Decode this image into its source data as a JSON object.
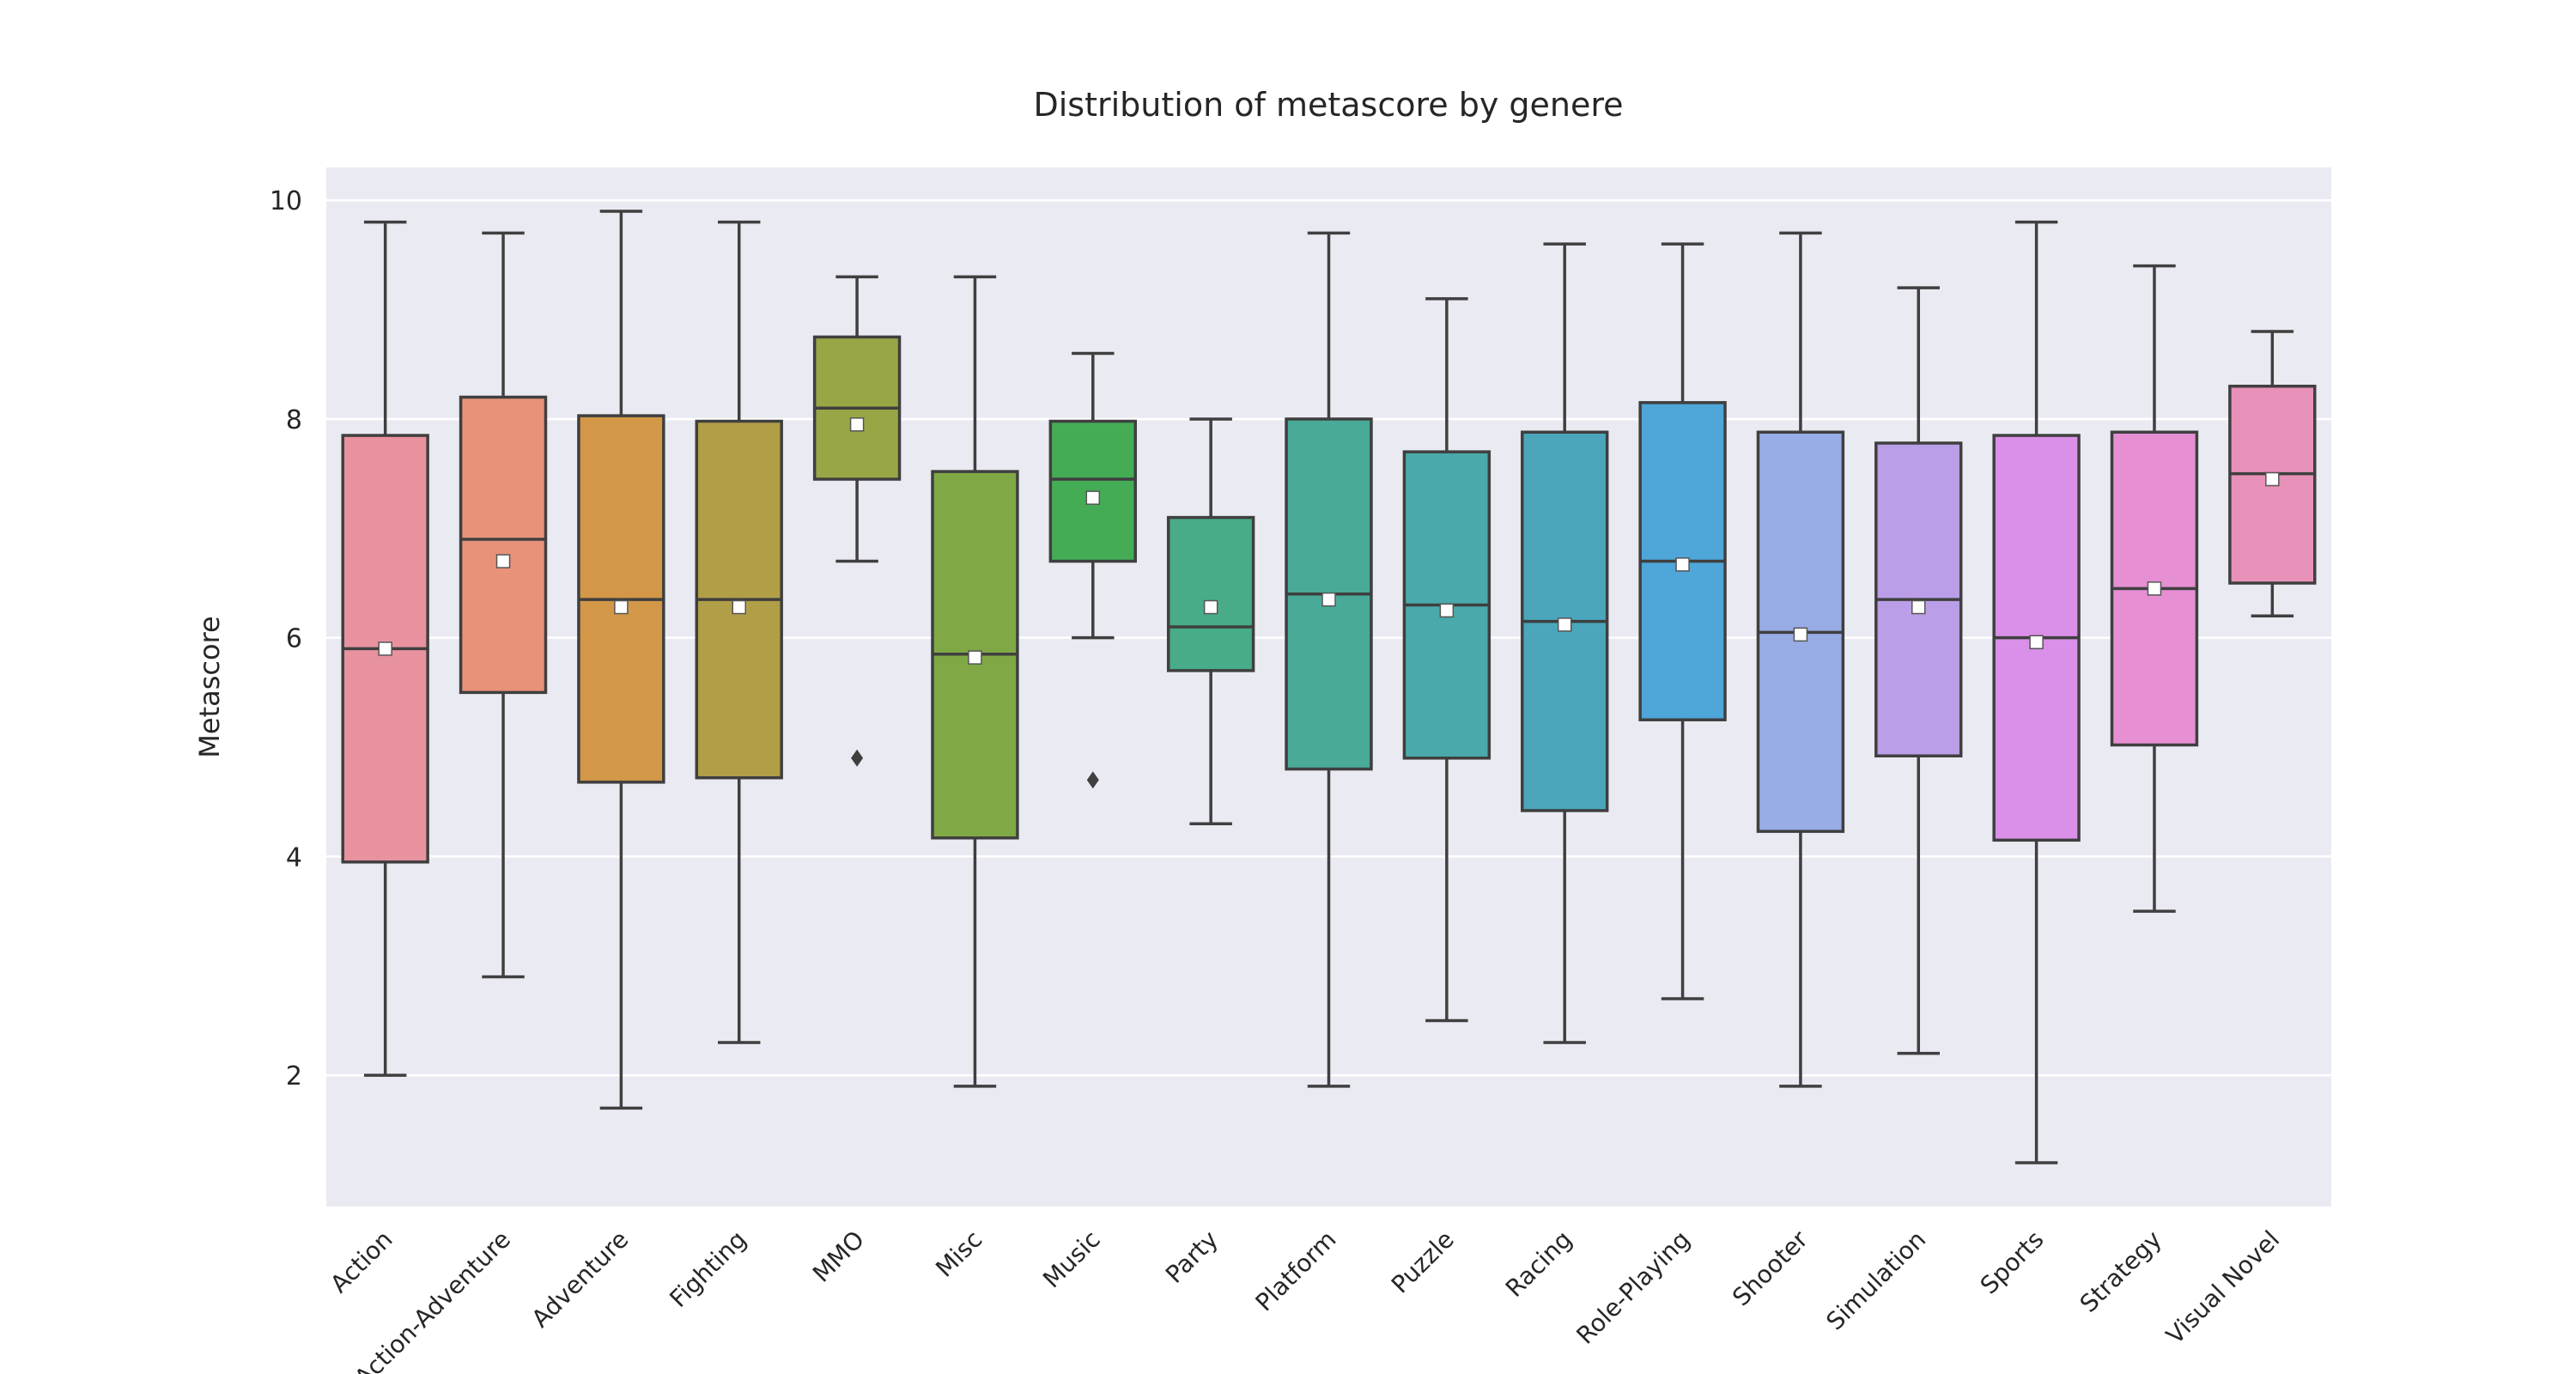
{
  "chart_data": {
    "type": "box",
    "title": "Distribution of metascore by genere",
    "xlabel": "",
    "ylabel": "Metascore",
    "ylim": [
      0.8,
      10.3
    ],
    "yticks": [
      2,
      4,
      6,
      8,
      10
    ],
    "grid": true,
    "legend": "none",
    "categories": [
      "Action",
      "Action-Adventure",
      "Adventure",
      "Fighting",
      "MMO",
      "Misc",
      "Music",
      "Party",
      "Platform",
      "Puzzle",
      "Racing",
      "Role-Playing",
      "Shooter",
      "Simulation",
      "Sports",
      "Strategy",
      "Visual Novel"
    ],
    "boxes": [
      {
        "category": "Action",
        "whislo": 2.0,
        "q1": 3.95,
        "med": 5.9,
        "q3": 7.85,
        "whishi": 9.8,
        "mean": 5.9,
        "fliers": [],
        "color": "#e8929f"
      },
      {
        "category": "Action-Adventure",
        "whislo": 2.9,
        "q1": 5.5,
        "med": 6.9,
        "q3": 8.2,
        "whishi": 9.7,
        "mean": 6.7,
        "fliers": [],
        "color": "#e8927a"
      },
      {
        "category": "Adventure",
        "whislo": 1.7,
        "q1": 4.68,
        "med": 6.35,
        "q3": 8.03,
        "whishi": 9.9,
        "mean": 6.28,
        "fliers": [],
        "color": "#d39748"
      },
      {
        "category": "Fighting",
        "whislo": 2.3,
        "q1": 4.72,
        "med": 6.35,
        "q3": 7.98,
        "whishi": 9.8,
        "mean": 6.28,
        "fliers": [],
        "color": "#b19f47"
      },
      {
        "category": "MMO",
        "whislo": 6.7,
        "q1": 7.45,
        "med": 8.1,
        "q3": 8.75,
        "whishi": 9.3,
        "mean": 7.95,
        "fliers": [
          4.9
        ],
        "color": "#9aa645"
      },
      {
        "category": "Misc",
        "whislo": 1.9,
        "q1": 4.17,
        "med": 5.85,
        "q3": 7.52,
        "whishi": 9.3,
        "mean": 5.82,
        "fliers": [],
        "color": "#80a945"
      },
      {
        "category": "Music",
        "whislo": 6.0,
        "q1": 6.7,
        "med": 7.45,
        "q3": 7.98,
        "whishi": 8.6,
        "mean": 7.28,
        "fliers": [
          4.7
        ],
        "color": "#44ac55"
      },
      {
        "category": "Party",
        "whislo": 4.3,
        "q1": 5.7,
        "med": 6.1,
        "q3": 7.1,
        "whishi": 8.0,
        "mean": 6.28,
        "fliers": [],
        "color": "#47ac87"
      },
      {
        "category": "Platform",
        "whislo": 1.9,
        "q1": 4.8,
        "med": 6.4,
        "q3": 8.0,
        "whishi": 9.7,
        "mean": 6.35,
        "fliers": [],
        "color": "#49aa98"
      },
      {
        "category": "Puzzle",
        "whislo": 2.5,
        "q1": 4.9,
        "med": 6.3,
        "q3": 7.7,
        "whishi": 9.1,
        "mean": 6.25,
        "fliers": [],
        "color": "#4aa9aa"
      },
      {
        "category": "Racing",
        "whislo": 2.3,
        "q1": 4.42,
        "med": 6.15,
        "q3": 7.88,
        "whishi": 9.6,
        "mean": 6.12,
        "fliers": [],
        "color": "#4ba6bc"
      },
      {
        "category": "Role-Playing",
        "whislo": 2.7,
        "q1": 5.25,
        "med": 6.7,
        "q3": 8.15,
        "whishi": 9.6,
        "mean": 6.67,
        "fliers": [],
        "color": "#4fa6d9"
      },
      {
        "category": "Shooter",
        "whislo": 1.9,
        "q1": 4.23,
        "med": 6.05,
        "q3": 7.88,
        "whishi": 9.7,
        "mean": 6.03,
        "fliers": [],
        "color": "#98ace6"
      },
      {
        "category": "Simulation",
        "whislo": 2.2,
        "q1": 4.92,
        "med": 6.35,
        "q3": 7.78,
        "whishi": 9.2,
        "mean": 6.28,
        "fliers": [],
        "color": "#bb9ee8"
      },
      {
        "category": "Sports",
        "whislo": 1.2,
        "q1": 4.15,
        "med": 6.0,
        "q3": 7.85,
        "whishi": 9.8,
        "mean": 5.96,
        "fliers": [],
        "color": "#da8fe8"
      },
      {
        "category": "Strategy",
        "whislo": 3.5,
        "q1": 5.02,
        "med": 6.45,
        "q3": 7.88,
        "whishi": 9.4,
        "mean": 6.45,
        "fliers": [],
        "color": "#e68fd3"
      },
      {
        "category": "Visual Novel",
        "whislo": 6.2,
        "q1": 6.5,
        "med": 7.5,
        "q3": 8.3,
        "whishi": 8.8,
        "mean": 7.45,
        "fliers": [],
        "color": "#e891b8"
      }
    ],
    "colors": {
      "plot_background": "#eaeaf2",
      "grid": "#ffffff",
      "line": "#3f3f3f",
      "mean_marker": "#ffffff"
    }
  }
}
